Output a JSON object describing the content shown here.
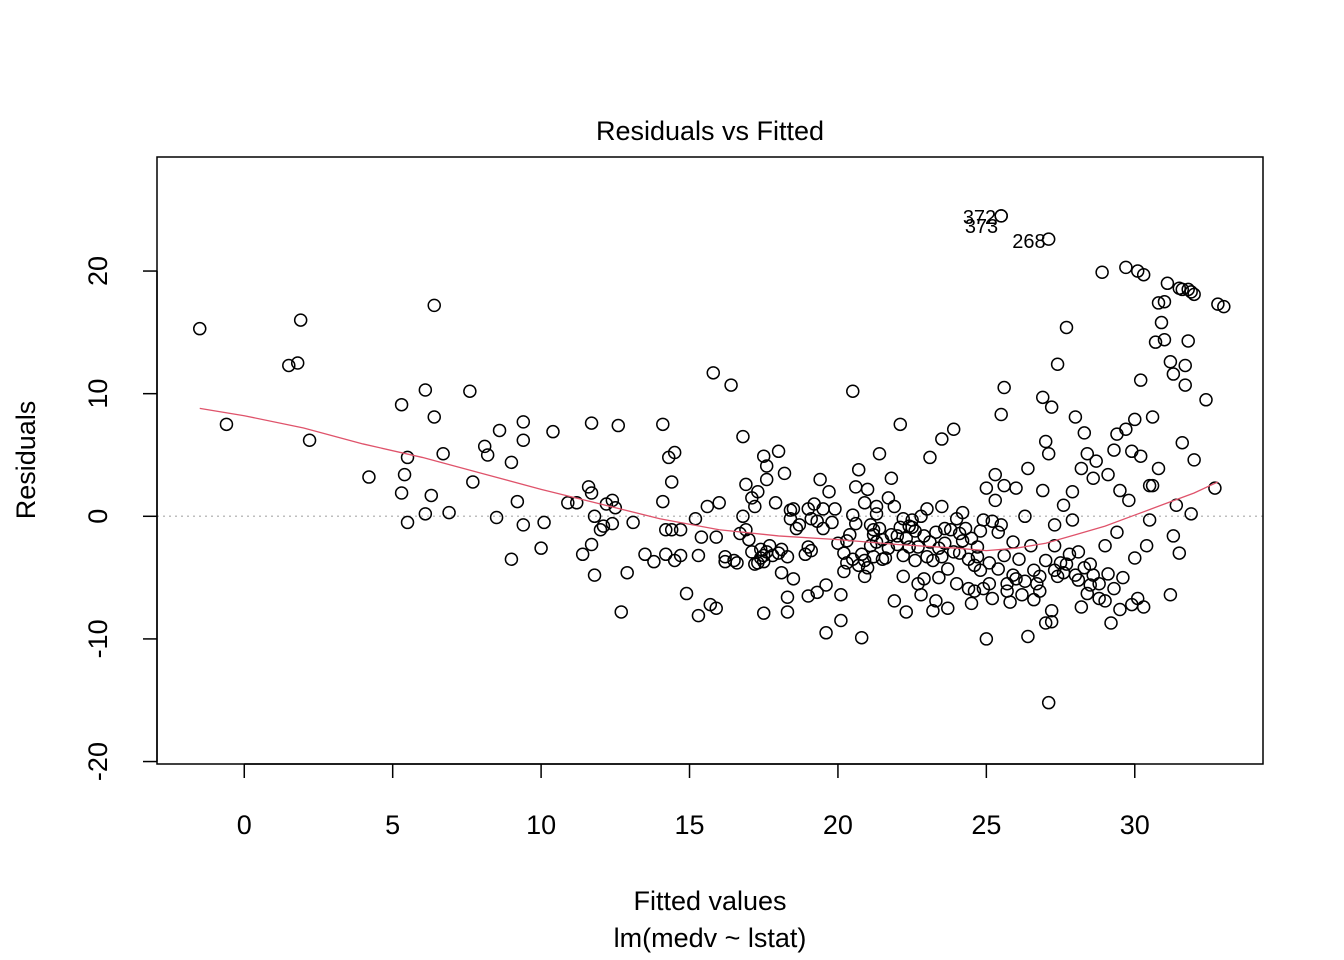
{
  "chart_data": {
    "type": "scatter",
    "title": "Residuals vs Fitted",
    "xlabel": "Fitted values",
    "xsub": "lm(medv ~ lstat)",
    "ylabel": "Residuals",
    "xlim": [
      -2.94,
      34.32
    ],
    "ylim": [
      -20.2,
      29.3
    ],
    "xticks": [
      0,
      5,
      10,
      15,
      20,
      25,
      30
    ],
    "yticks": [
      -20,
      -10,
      0,
      10,
      20
    ],
    "reference_line": {
      "y": 0,
      "style": "dotted",
      "color": "#BEBEBE"
    },
    "smooth_color": "#DF536B",
    "point_color": "#000000",
    "labeled_points": [
      {
        "label": "372",
        "x": 25.5,
        "y": 24.5
      },
      {
        "label": "373",
        "x": 25.5,
        "y": 24.5
      },
      {
        "label": "268",
        "x": 27.1,
        "y": 22.6
      }
    ],
    "smooth": {
      "x": [
        -1.5,
        0,
        2,
        4,
        6,
        8,
        10,
        12,
        14,
        16,
        18,
        20,
        22,
        24,
        25,
        26,
        27,
        28,
        29,
        30,
        31,
        32,
        32.8
      ],
      "y": [
        8.8,
        8.2,
        7.2,
        5.9,
        4.8,
        3.5,
        2.2,
        1.0,
        -0.2,
        -1.1,
        -1.6,
        -1.9,
        -2.3,
        -2.6,
        -2.8,
        -2.6,
        -2.2,
        -1.5,
        -0.8,
        0.1,
        1.0,
        1.9,
        2.8
      ]
    },
    "points": [
      [
        -1.5,
        15.3
      ],
      [
        -0.6,
        7.5
      ],
      [
        1.5,
        12.3
      ],
      [
        1.8,
        12.5
      ],
      [
        1.9,
        16.0
      ],
      [
        2.2,
        6.2
      ],
      [
        4.2,
        3.2
      ],
      [
        5.3,
        9.1
      ],
      [
        5.3,
        1.9
      ],
      [
        5.4,
        3.4
      ],
      [
        5.5,
        4.8
      ],
      [
        5.5,
        -0.5
      ],
      [
        6.1,
        0.2
      ],
      [
        6.1,
        10.3
      ],
      [
        6.3,
        1.7
      ],
      [
        6.4,
        8.1
      ],
      [
        6.4,
        17.2
      ],
      [
        6.7,
        5.1
      ],
      [
        6.9,
        0.3
      ],
      [
        7.6,
        10.2
      ],
      [
        7.7,
        2.8
      ],
      [
        8.1,
        5.7
      ],
      [
        8.2,
        5.0
      ],
      [
        8.5,
        -0.1
      ],
      [
        8.6,
        7.0
      ],
      [
        9.0,
        -3.5
      ],
      [
        9.0,
        4.4
      ],
      [
        9.2,
        1.2
      ],
      [
        9.4,
        -0.7
      ],
      [
        9.4,
        6.2
      ],
      [
        9.4,
        7.7
      ],
      [
        10.0,
        -2.6
      ],
      [
        10.1,
        -0.5
      ],
      [
        10.4,
        6.9
      ],
      [
        10.9,
        1.1
      ],
      [
        11.2,
        1.1
      ],
      [
        11.4,
        -3.1
      ],
      [
        11.6,
        2.4
      ],
      [
        11.7,
        -2.3
      ],
      [
        11.7,
        1.9
      ],
      [
        11.7,
        7.6
      ],
      [
        11.8,
        -4.8
      ],
      [
        11.8,
        0.0
      ],
      [
        12.0,
        -1.1
      ],
      [
        12.1,
        -0.8
      ],
      [
        12.2,
        1.0
      ],
      [
        12.4,
        -0.6
      ],
      [
        12.4,
        1.3
      ],
      [
        12.5,
        0.7
      ],
      [
        12.6,
        7.4
      ],
      [
        12.7,
        -7.8
      ],
      [
        12.9,
        -4.6
      ],
      [
        13.1,
        -0.5
      ],
      [
        13.5,
        -3.1
      ],
      [
        13.8,
        -3.7
      ],
      [
        14.1,
        7.5
      ],
      [
        14.1,
        1.2
      ],
      [
        14.2,
        -3.1
      ],
      [
        14.2,
        -1.1
      ],
      [
        14.3,
        4.8
      ],
      [
        14.4,
        -1.1
      ],
      [
        14.4,
        2.8
      ],
      [
        14.5,
        5.2
      ],
      [
        14.5,
        -3.6
      ],
      [
        14.7,
        -1.1
      ],
      [
        14.7,
        -3.2
      ],
      [
        14.9,
        -6.3
      ],
      [
        15.2,
        -0.2
      ],
      [
        15.3,
        -8.1
      ],
      [
        15.3,
        -3.2
      ],
      [
        15.4,
        -1.7
      ],
      [
        15.6,
        0.8
      ],
      [
        15.7,
        -7.2
      ],
      [
        15.8,
        11.7
      ],
      [
        15.9,
        -7.5
      ],
      [
        15.9,
        -1.7
      ],
      [
        16.0,
        1.1
      ],
      [
        16.2,
        -3.3
      ],
      [
        16.2,
        -3.7
      ],
      [
        16.4,
        10.7
      ],
      [
        16.5,
        -3.6
      ],
      [
        16.6,
        -3.8
      ],
      [
        16.7,
        -1.4
      ],
      [
        16.8,
        6.5
      ],
      [
        16.8,
        0.0
      ],
      [
        16.9,
        -1.1
      ],
      [
        16.9,
        2.6
      ],
      [
        17.0,
        -1.9
      ],
      [
        17.1,
        1.5
      ],
      [
        17.1,
        -2.9
      ],
      [
        17.2,
        0.8
      ],
      [
        17.2,
        -3.9
      ],
      [
        17.3,
        -3.8
      ],
      [
        17.3,
        2.0
      ],
      [
        17.4,
        -2.7
      ],
      [
        17.4,
        -3.4
      ],
      [
        17.5,
        -3.2
      ],
      [
        17.5,
        -3.7
      ],
      [
        17.5,
        4.9
      ],
      [
        17.5,
        -7.9
      ],
      [
        17.6,
        -2.9
      ],
      [
        17.6,
        4.1
      ],
      [
        17.6,
        3.0
      ],
      [
        17.7,
        -2.4
      ],
      [
        17.8,
        -3.2
      ],
      [
        17.9,
        1.1
      ],
      [
        18.0,
        5.3
      ],
      [
        18.0,
        -3.0
      ],
      [
        18.1,
        -4.6
      ],
      [
        18.1,
        -2.7
      ],
      [
        18.2,
        3.5
      ],
      [
        18.3,
        -7.8
      ],
      [
        18.3,
        -6.6
      ],
      [
        18.3,
        -3.3
      ],
      [
        18.4,
        0.5
      ],
      [
        18.4,
        -0.2
      ],
      [
        18.5,
        0.6
      ],
      [
        18.5,
        -5.1
      ],
      [
        18.6,
        -1.0
      ],
      [
        18.7,
        -0.7
      ],
      [
        18.9,
        -3.1
      ],
      [
        19.0,
        -2.5
      ],
      [
        19.0,
        0.6
      ],
      [
        19.0,
        -6.5
      ],
      [
        19.1,
        -0.2
      ],
      [
        19.1,
        -2.8
      ],
      [
        19.2,
        1.0
      ],
      [
        19.3,
        -0.4
      ],
      [
        19.3,
        -6.2
      ],
      [
        19.4,
        3.0
      ],
      [
        19.5,
        -1.0
      ],
      [
        19.5,
        0.6
      ],
      [
        19.6,
        -9.5
      ],
      [
        19.6,
        -5.6
      ],
      [
        19.7,
        2.0
      ],
      [
        19.8,
        -0.5
      ],
      [
        19.9,
        0.6
      ],
      [
        20.0,
        -2.2
      ],
      [
        20.1,
        -6.4
      ],
      [
        20.1,
        -8.5
      ],
      [
        20.2,
        -3.0
      ],
      [
        20.2,
        -4.5
      ],
      [
        20.3,
        -2.0
      ],
      [
        20.3,
        -3.8
      ],
      [
        20.4,
        -1.5
      ],
      [
        20.5,
        10.2
      ],
      [
        20.5,
        0.1
      ],
      [
        20.5,
        -3.5
      ],
      [
        20.6,
        -0.6
      ],
      [
        20.6,
        2.4
      ],
      [
        20.7,
        3.8
      ],
      [
        20.7,
        -4.0
      ],
      [
        20.8,
        -3.1
      ],
      [
        20.8,
        -9.9
      ],
      [
        20.9,
        1.1
      ],
      [
        20.9,
        -4.9
      ],
      [
        20.9,
        -3.6
      ],
      [
        21.0,
        2.2
      ],
      [
        21.0,
        -4.2
      ],
      [
        21.1,
        -0.7
      ],
      [
        21.1,
        -2.4
      ],
      [
        21.2,
        -1.1
      ],
      [
        21.2,
        -1.5
      ],
      [
        21.2,
        -3.3
      ],
      [
        21.3,
        0.2
      ],
      [
        21.3,
        -2.1
      ],
      [
        21.3,
        0.8
      ],
      [
        21.4,
        5.1
      ],
      [
        21.4,
        -1.0
      ],
      [
        21.5,
        -1.9
      ],
      [
        21.5,
        -3.5
      ],
      [
        21.6,
        -3.4
      ],
      [
        21.7,
        1.5
      ],
      [
        21.7,
        -2.6
      ],
      [
        21.8,
        3.1
      ],
      [
        21.8,
        -1.5
      ],
      [
        21.9,
        -6.9
      ],
      [
        21.9,
        0.8
      ],
      [
        22.0,
        -2.3
      ],
      [
        22.0,
        -1.6
      ],
      [
        22.1,
        -0.9
      ],
      [
        22.1,
        7.5
      ],
      [
        22.2,
        -0.2
      ],
      [
        22.2,
        -3.2
      ],
      [
        22.2,
        -4.9
      ],
      [
        22.3,
        -1.8
      ],
      [
        22.3,
        -7.8
      ],
      [
        22.4,
        -0.8
      ],
      [
        22.4,
        -2.5
      ],
      [
        22.5,
        -0.3
      ],
      [
        22.5,
        -0.9
      ],
      [
        22.6,
        -1.2
      ],
      [
        22.6,
        -3.6
      ],
      [
        22.7,
        -5.5
      ],
      [
        22.7,
        -2.5
      ],
      [
        22.8,
        0.0
      ],
      [
        22.8,
        -6.4
      ],
      [
        22.9,
        -1.6
      ],
      [
        22.9,
        -5.1
      ],
      [
        23.0,
        0.6
      ],
      [
        23.0,
        -3.3
      ],
      [
        23.1,
        -2.1
      ],
      [
        23.1,
        4.8
      ],
      [
        23.2,
        -7.7
      ],
      [
        23.2,
        -3.6
      ],
      [
        23.3,
        -1.3
      ],
      [
        23.3,
        -6.9
      ],
      [
        23.4,
        -2.6
      ],
      [
        23.4,
        -5.0
      ],
      [
        23.5,
        0.8
      ],
      [
        23.5,
        -3.3
      ],
      [
        23.5,
        6.3
      ],
      [
        23.6,
        -1.0
      ],
      [
        23.6,
        -2.2
      ],
      [
        23.7,
        -7.5
      ],
      [
        23.7,
        -4.3
      ],
      [
        23.8,
        -1.1
      ],
      [
        23.9,
        7.1
      ],
      [
        23.9,
        -2.9
      ],
      [
        24.0,
        -0.2
      ],
      [
        24.0,
        -5.5
      ],
      [
        24.1,
        -1.4
      ],
      [
        24.1,
        -3.0
      ],
      [
        24.2,
        0.3
      ],
      [
        24.2,
        -2.0
      ],
      [
        24.3,
        -1.0
      ],
      [
        24.4,
        -3.5
      ],
      [
        24.4,
        -5.9
      ],
      [
        24.5,
        -1.8
      ],
      [
        24.5,
        -7.1
      ],
      [
        24.6,
        -4.0
      ],
      [
        24.6,
        -6.1
      ],
      [
        24.7,
        -2.5
      ],
      [
        24.7,
        -3.3
      ],
      [
        24.8,
        -4.4
      ],
      [
        24.8,
        -1.2
      ],
      [
        24.9,
        -5.9
      ],
      [
        24.9,
        -0.3
      ],
      [
        25.0,
        -10.0
      ],
      [
        25.0,
        2.3
      ],
      [
        25.1,
        -3.8
      ],
      [
        25.1,
        -5.5
      ],
      [
        25.2,
        -0.4
      ],
      [
        25.2,
        -6.7
      ],
      [
        25.3,
        1.3
      ],
      [
        25.3,
        3.4
      ],
      [
        25.4,
        -1.3
      ],
      [
        25.4,
        -4.3
      ],
      [
        25.5,
        8.3
      ],
      [
        25.5,
        -0.7
      ],
      [
        25.6,
        10.5
      ],
      [
        25.6,
        2.5
      ],
      [
        25.6,
        -3.2
      ],
      [
        25.7,
        -6.1
      ],
      [
        25.7,
        -5.5
      ],
      [
        25.8,
        -7.0
      ],
      [
        25.9,
        -2.1
      ],
      [
        25.9,
        -4.8
      ],
      [
        26.0,
        2.3
      ],
      [
        26.0,
        -5.1
      ],
      [
        26.1,
        -3.5
      ],
      [
        26.2,
        -6.4
      ],
      [
        26.3,
        -5.3
      ],
      [
        26.3,
        0.0
      ],
      [
        26.4,
        -9.8
      ],
      [
        26.4,
        3.9
      ],
      [
        26.5,
        -2.4
      ],
      [
        26.6,
        -6.8
      ],
      [
        26.6,
        -4.4
      ],
      [
        26.7,
        -5.5
      ],
      [
        26.8,
        -6.1
      ],
      [
        26.8,
        -4.9
      ],
      [
        26.9,
        2.1
      ],
      [
        26.9,
        9.7
      ],
      [
        27.0,
        -8.7
      ],
      [
        27.0,
        6.1
      ],
      [
        27.0,
        -3.6
      ],
      [
        27.1,
        -15.2
      ],
      [
        27.1,
        5.1
      ],
      [
        27.2,
        -7.7
      ],
      [
        27.2,
        8.9
      ],
      [
        27.2,
        -8.6
      ],
      [
        27.3,
        -2.4
      ],
      [
        27.3,
        -4.4
      ],
      [
        27.3,
        -0.7
      ],
      [
        27.4,
        12.4
      ],
      [
        27.4,
        -4.9
      ],
      [
        27.5,
        -3.8
      ],
      [
        27.6,
        0.9
      ],
      [
        27.6,
        -4.6
      ],
      [
        27.7,
        15.4
      ],
      [
        27.7,
        -3.9
      ],
      [
        27.8,
        -3.1
      ],
      [
        27.9,
        2.0
      ],
      [
        27.9,
        -0.3
      ],
      [
        28.0,
        8.1
      ],
      [
        28.0,
        -4.8
      ],
      [
        28.1,
        -2.9
      ],
      [
        28.1,
        -5.2
      ],
      [
        28.2,
        -7.4
      ],
      [
        28.2,
        3.9
      ],
      [
        28.3,
        -4.2
      ],
      [
        28.3,
        6.8
      ],
      [
        28.4,
        -6.3
      ],
      [
        28.4,
        5.1
      ],
      [
        28.5,
        -3.9
      ],
      [
        28.5,
        -5.6
      ],
      [
        28.6,
        3.1
      ],
      [
        28.6,
        -4.8
      ],
      [
        28.7,
        4.5
      ],
      [
        28.8,
        -5.5
      ],
      [
        28.8,
        -6.7
      ],
      [
        28.9,
        19.9
      ],
      [
        29.0,
        -2.4
      ],
      [
        29.0,
        -6.9
      ],
      [
        29.1,
        -4.7
      ],
      [
        29.1,
        3.4
      ],
      [
        29.2,
        -8.7
      ],
      [
        29.3,
        5.4
      ],
      [
        29.3,
        -5.9
      ],
      [
        29.4,
        -1.3
      ],
      [
        29.4,
        6.7
      ],
      [
        29.5,
        -7.6
      ],
      [
        29.5,
        2.1
      ],
      [
        29.6,
        -5.0
      ],
      [
        29.7,
        20.3
      ],
      [
        29.7,
        7.1
      ],
      [
        29.8,
        1.3
      ],
      [
        29.9,
        -7.2
      ],
      [
        29.9,
        5.3
      ],
      [
        30.0,
        -3.4
      ],
      [
        30.0,
        7.9
      ],
      [
        30.1,
        20.0
      ],
      [
        30.1,
        -6.7
      ],
      [
        30.2,
        11.1
      ],
      [
        30.2,
        4.9
      ],
      [
        30.3,
        -7.4
      ],
      [
        30.3,
        19.7
      ],
      [
        30.4,
        -2.4
      ],
      [
        30.5,
        2.5
      ],
      [
        30.5,
        -0.3
      ],
      [
        30.6,
        8.1
      ],
      [
        30.6,
        2.5
      ],
      [
        30.7,
        14.2
      ],
      [
        30.8,
        17.4
      ],
      [
        30.8,
        3.9
      ],
      [
        30.9,
        15.8
      ],
      [
        31.0,
        17.5
      ],
      [
        31.0,
        14.4
      ],
      [
        31.1,
        19.0
      ],
      [
        31.2,
        -6.4
      ],
      [
        31.2,
        12.6
      ],
      [
        31.3,
        -1.6
      ],
      [
        31.3,
        11.6
      ],
      [
        31.4,
        0.9
      ],
      [
        31.5,
        18.6
      ],
      [
        31.5,
        -3.0
      ],
      [
        31.6,
        18.5
      ],
      [
        31.6,
        6.0
      ],
      [
        31.7,
        10.7
      ],
      [
        31.7,
        12.3
      ],
      [
        31.8,
        18.5
      ],
      [
        31.8,
        14.3
      ],
      [
        31.9,
        18.3
      ],
      [
        31.9,
        0.2
      ],
      [
        32.0,
        4.6
      ],
      [
        32.0,
        18.1
      ],
      [
        32.4,
        9.5
      ],
      [
        32.7,
        2.3
      ],
      [
        32.8,
        17.3
      ],
      [
        33.0,
        17.1
      ]
    ]
  }
}
